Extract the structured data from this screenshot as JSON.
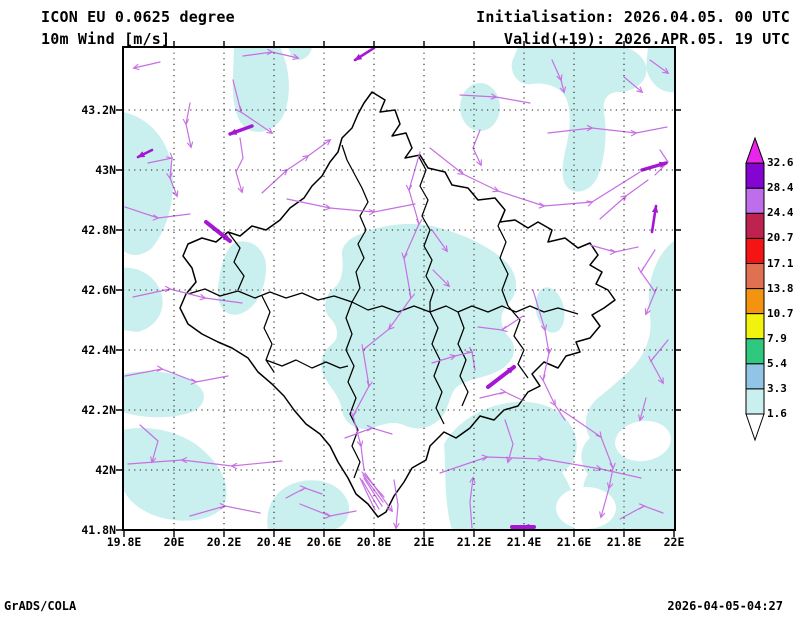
{
  "header": {
    "model_line1": "ICON EU 0.0625 degree",
    "model_line2": "10m Wind [m/s]",
    "init_line": "Initialisation: 2026.04.05. 00 UTC",
    "valid_line": "Valid(+19): 2026.APR.05. 19 UTC"
  },
  "axes": {
    "y_labels": [
      "43.2N",
      "43N",
      "42.8N",
      "42.6N",
      "42.4N",
      "42.2N",
      "42N",
      "41.8N"
    ],
    "x_labels": [
      "19.8E",
      "20E",
      "20.2E",
      "20.4E",
      "20.6E",
      "20.8E",
      "21E",
      "21.2E",
      "21.4E",
      "21.6E",
      "21.8E",
      "22E"
    ]
  },
  "colorbar": {
    "labels": [
      "32.6",
      "28.4",
      "24.4",
      "20.7",
      "17.1",
      "13.8",
      "10.7",
      "7.9",
      "5.4",
      "3.3",
      "1.6"
    ],
    "segment_colors_top_to_bottom": [
      "#8405D2",
      "#BE6EEB",
      "#BE2350",
      "#F51414",
      "#DF7052",
      "#F3930F",
      "#F2F20F",
      "#2EC87E",
      "#92C4E6",
      "#C9F0EE"
    ],
    "arrow_top_color": "#EA25EA",
    "arrow_bottom_color": "#FFFFFF"
  },
  "footer": {
    "left": "GrADS/COLA",
    "right": "2026-04-05-04:27"
  },
  "map": {
    "shade_color": "#C9F0EE",
    "streamline_color": "#C76FE3",
    "streamline_bold_color": "#A517D4",
    "boundary_color": "#000000",
    "grid_color": "#222222"
  }
}
